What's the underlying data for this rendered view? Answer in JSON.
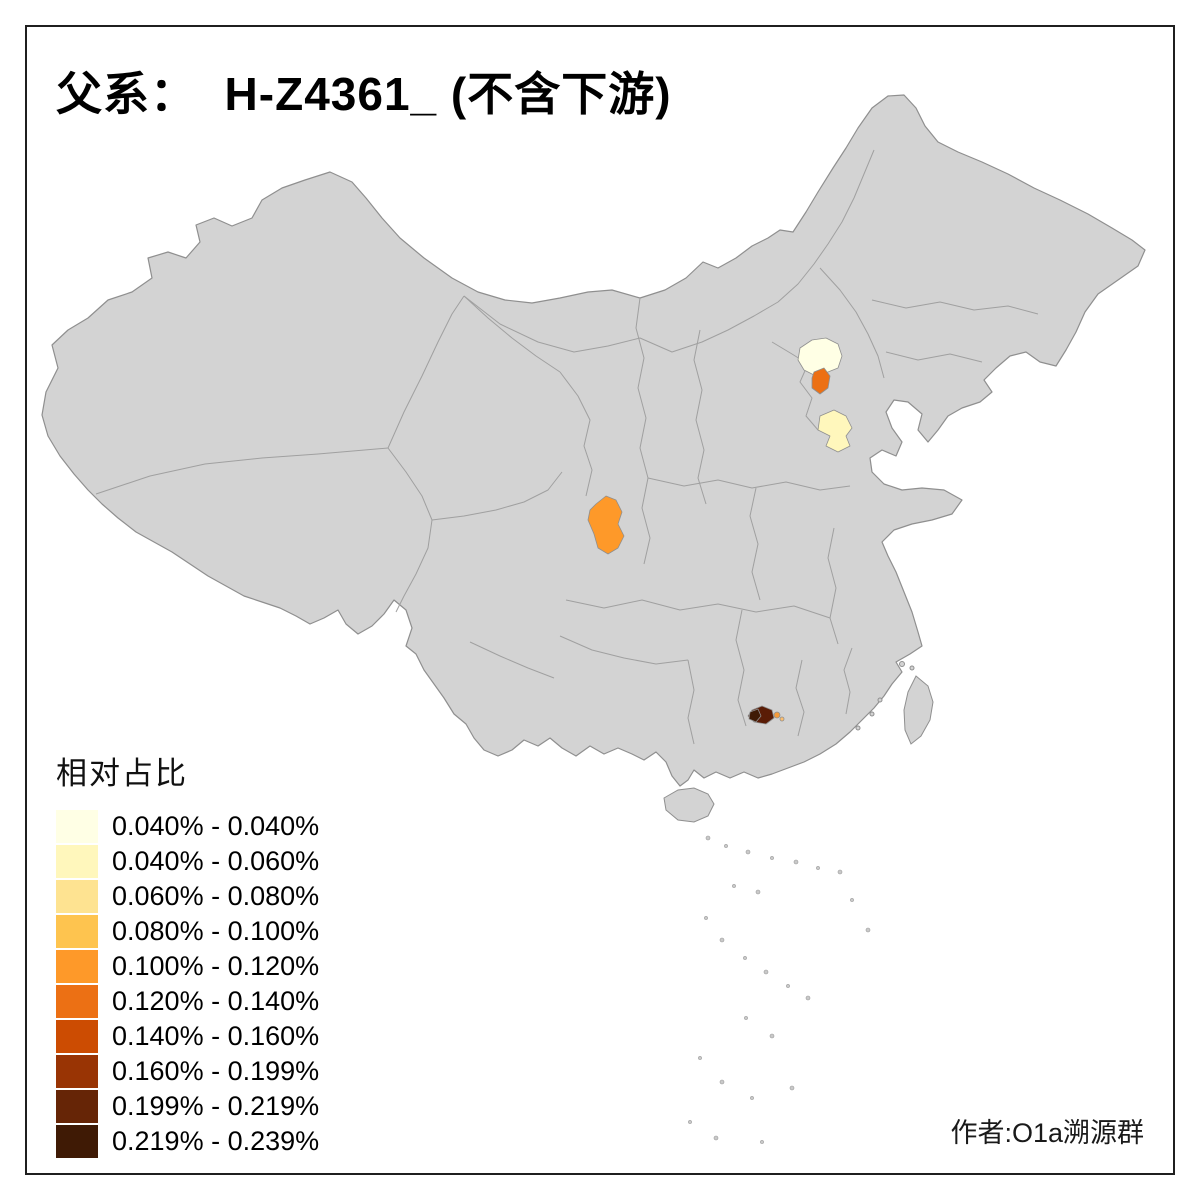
{
  "title": "父系：  H-Z4361_ (不含下游)",
  "legend": {
    "title": "相对占比",
    "items": [
      {
        "label": "0.040% - 0.040%",
        "color": "#FFFFE5"
      },
      {
        "label": "0.040% - 0.060%",
        "color": "#FFF7BC"
      },
      {
        "label": "0.060% - 0.080%",
        "color": "#FEE391"
      },
      {
        "label": "0.080% - 0.100%",
        "color": "#FEC44F"
      },
      {
        "label": "0.100% - 0.120%",
        "color": "#FE9929"
      },
      {
        "label": "0.120% - 0.140%",
        "color": "#EC7014"
      },
      {
        "label": "0.140% - 0.160%",
        "color": "#CC4C02"
      },
      {
        "label": "0.160% - 0.199%",
        "color": "#993404"
      },
      {
        "label": "0.199% - 0.219%",
        "color": "#662506"
      },
      {
        "label": "0.219% - 0.239%",
        "color": "#3F1A05"
      }
    ]
  },
  "credit": "作者:O1a溯源群",
  "map": {
    "regions": [
      {
        "id": "region-beijing-outer",
        "color": "#FFFFE5"
      },
      {
        "id": "region-beijing-inner",
        "color": "#EC7014"
      },
      {
        "id": "region-shandong-west",
        "color": "#FFF7BC"
      },
      {
        "id": "region-sichuan-center",
        "color": "#FE9929"
      },
      {
        "id": "region-guangdong-dark",
        "color": "#5A1C06"
      },
      {
        "id": "region-guangdong-darkest",
        "color": "#3F1A05"
      },
      {
        "id": "region-guangdong-spot",
        "color": "#F59B3C"
      },
      {
        "id": "region-guangdong-spot2",
        "color": "#FDBE6E"
      }
    ]
  }
}
